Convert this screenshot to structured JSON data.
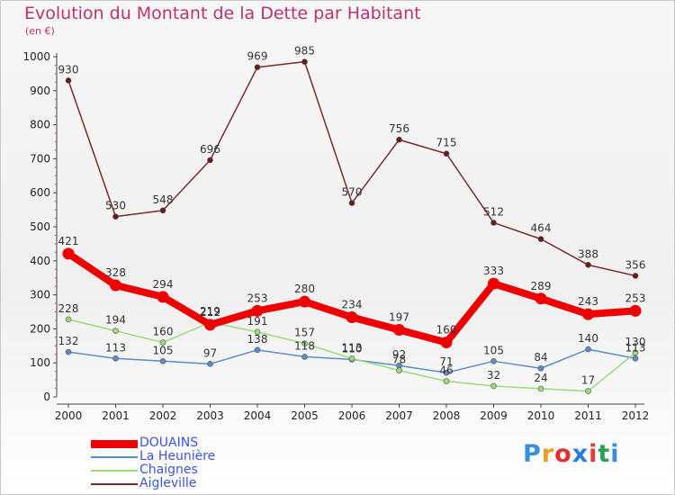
{
  "header": {
    "title": "Evolution du Montant de la Dette par Habitant",
    "subtitle": "(en €)"
  },
  "logo": {
    "text": "Proxiti",
    "letter_colors": [
      "#3a8ee0",
      "#e8a020",
      "#e03030",
      "#2a7ed8",
      "#e83a3a",
      "#2aa050",
      "#3a8ee0"
    ]
  },
  "chart_data": {
    "type": "line",
    "title": "Evolution du Montant de la Dette par Habitant",
    "subtitle": "(en €)",
    "x": [
      "2000",
      "2001",
      "2002",
      "2003",
      "2004",
      "2005",
      "2006",
      "2007",
      "2008",
      "2009",
      "2010",
      "2011",
      "2012"
    ],
    "ylim": [
      0,
      1000
    ],
    "yticks": [
      "0",
      "100",
      "200",
      "300",
      "400",
      "500",
      "600",
      "700",
      "800",
      "900",
      "1000"
    ],
    "grid": false,
    "legend_position": "bottom-left",
    "series": [
      {
        "name": "DOUAINS",
        "color": "#ee0000",
        "values": [
          421,
          328,
          294,
          212,
          253,
          280,
          234,
          197,
          160,
          333,
          289,
          243,
          253
        ],
        "labels": [
          "421",
          "328",
          "294",
          "212",
          "253",
          "280",
          "234",
          "197",
          "160",
          "333",
          "289",
          "243",
          "253"
        ]
      },
      {
        "name": "La Heunière",
        "color": "#5a8ec8",
        "values": [
          132,
          113,
          105,
          97,
          138,
          118,
          110,
          92,
          71,
          105,
          84,
          140,
          113
        ],
        "labels": [
          "132",
          "113",
          "105",
          "97",
          "138",
          "118",
          "110",
          "92",
          "71",
          "105",
          "84",
          "140",
          "113"
        ]
      },
      {
        "name": "Chaignes",
        "color": "#9adc78",
        "values": [
          228,
          194,
          160,
          219,
          191,
          157,
          113,
          78,
          46,
          32,
          24,
          17,
          130
        ],
        "labels": [
          "228",
          "194",
          "160",
          "219",
          "191",
          "157",
          "113",
          "78",
          "46",
          "32",
          "24",
          "17",
          "130"
        ]
      },
      {
        "name": "Aigleville",
        "color": "#7a2a2a",
        "values": [
          930,
          530,
          548,
          696,
          969,
          985,
          570,
          756,
          715,
          512,
          464,
          388,
          356
        ],
        "labels": [
          "930",
          "530",
          "548",
          "696",
          "969",
          "985",
          "570",
          "756",
          "715",
          "512",
          "464",
          "388",
          "356"
        ]
      }
    ]
  }
}
